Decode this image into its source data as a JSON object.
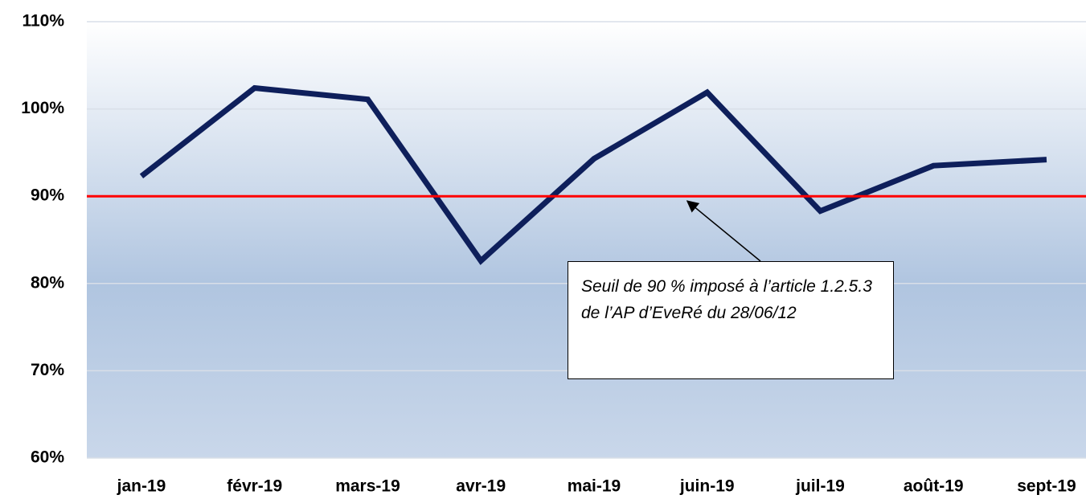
{
  "chart_data": {
    "type": "line",
    "categories": [
      "jan-19",
      "févr-19",
      "mars-19",
      "avr-19",
      "mai-19",
      "juin-19",
      "juil-19",
      "août-19",
      "sept-19"
    ],
    "series": [
      {
        "color": "#0e1f5b",
        "values": [
          92.3,
          102.4,
          101.1,
          82.6,
          94.3,
          101.9,
          88.3,
          93.5,
          94.2
        ]
      }
    ],
    "ylim": [
      60,
      110
    ],
    "yticks": [
      {
        "value": 60,
        "label": "60%"
      },
      {
        "value": 70,
        "label": "70%"
      },
      {
        "value": 80,
        "label": "80%"
      },
      {
        "value": 90,
        "label": "90%"
      },
      {
        "value": 100,
        "label": "100%"
      },
      {
        "value": 110,
        "label": "110%"
      }
    ],
    "grid": true,
    "threshold": {
      "value": 90,
      "color": "#ff0000"
    },
    "annotation": "Seuil de 90 % imposé à l’article 1.2.5.3 de l’AP d’EveRé du 28/06/12"
  }
}
